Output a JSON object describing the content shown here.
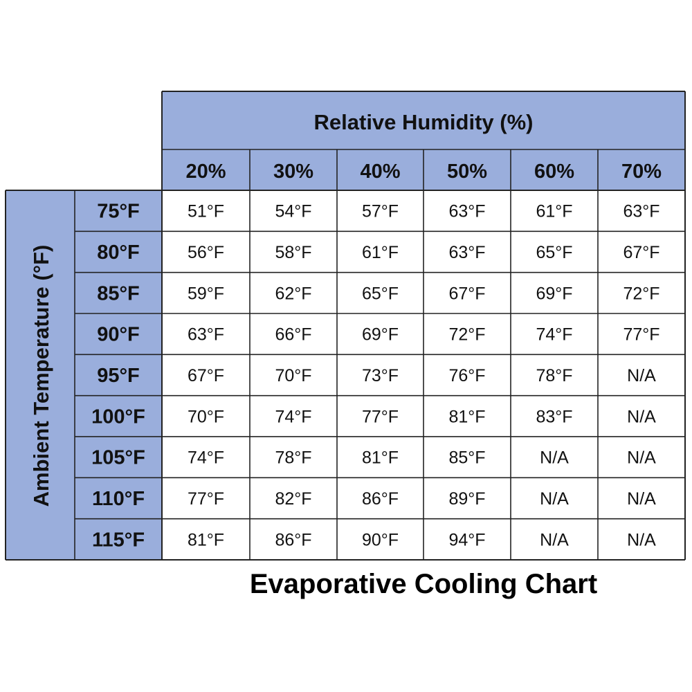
{
  "chart_data": {
    "type": "table",
    "title": "Evaporative Cooling Chart",
    "column_header": "Relative Humidity (%)",
    "row_header": "Ambient Temperature (°F)",
    "columns": [
      "20%",
      "30%",
      "40%",
      "50%",
      "60%",
      "70%"
    ],
    "rows": [
      "75°F",
      "80°F",
      "85°F",
      "90°F",
      "95°F",
      "100°F",
      "105°F",
      "110°F",
      "115°F"
    ],
    "cells": [
      [
        "51°F",
        "54°F",
        "57°F",
        "63°F",
        "61°F",
        "63°F"
      ],
      [
        "56°F",
        "58°F",
        "61°F",
        "63°F",
        "65°F",
        "67°F"
      ],
      [
        "59°F",
        "62°F",
        "65°F",
        "67°F",
        "69°F",
        "72°F"
      ],
      [
        "63°F",
        "66°F",
        "69°F",
        "72°F",
        "74°F",
        "77°F"
      ],
      [
        "67°F",
        "70°F",
        "73°F",
        "76°F",
        "78°F",
        "N/A"
      ],
      [
        "70°F",
        "74°F",
        "77°F",
        "81°F",
        "83°F",
        "N/A"
      ],
      [
        "74°F",
        "78°F",
        "81°F",
        "85°F",
        "N/A",
        "N/A"
      ],
      [
        "77°F",
        "82°F",
        "86°F",
        "89°F",
        "N/A",
        "N/A"
      ],
      [
        "81°F",
        "86°F",
        "90°F",
        "94°F",
        "N/A",
        "N/A"
      ]
    ],
    "colors": {
      "header_fill": "#9aaedc",
      "cell_fill": "#ffffff",
      "border": "#222222"
    }
  }
}
